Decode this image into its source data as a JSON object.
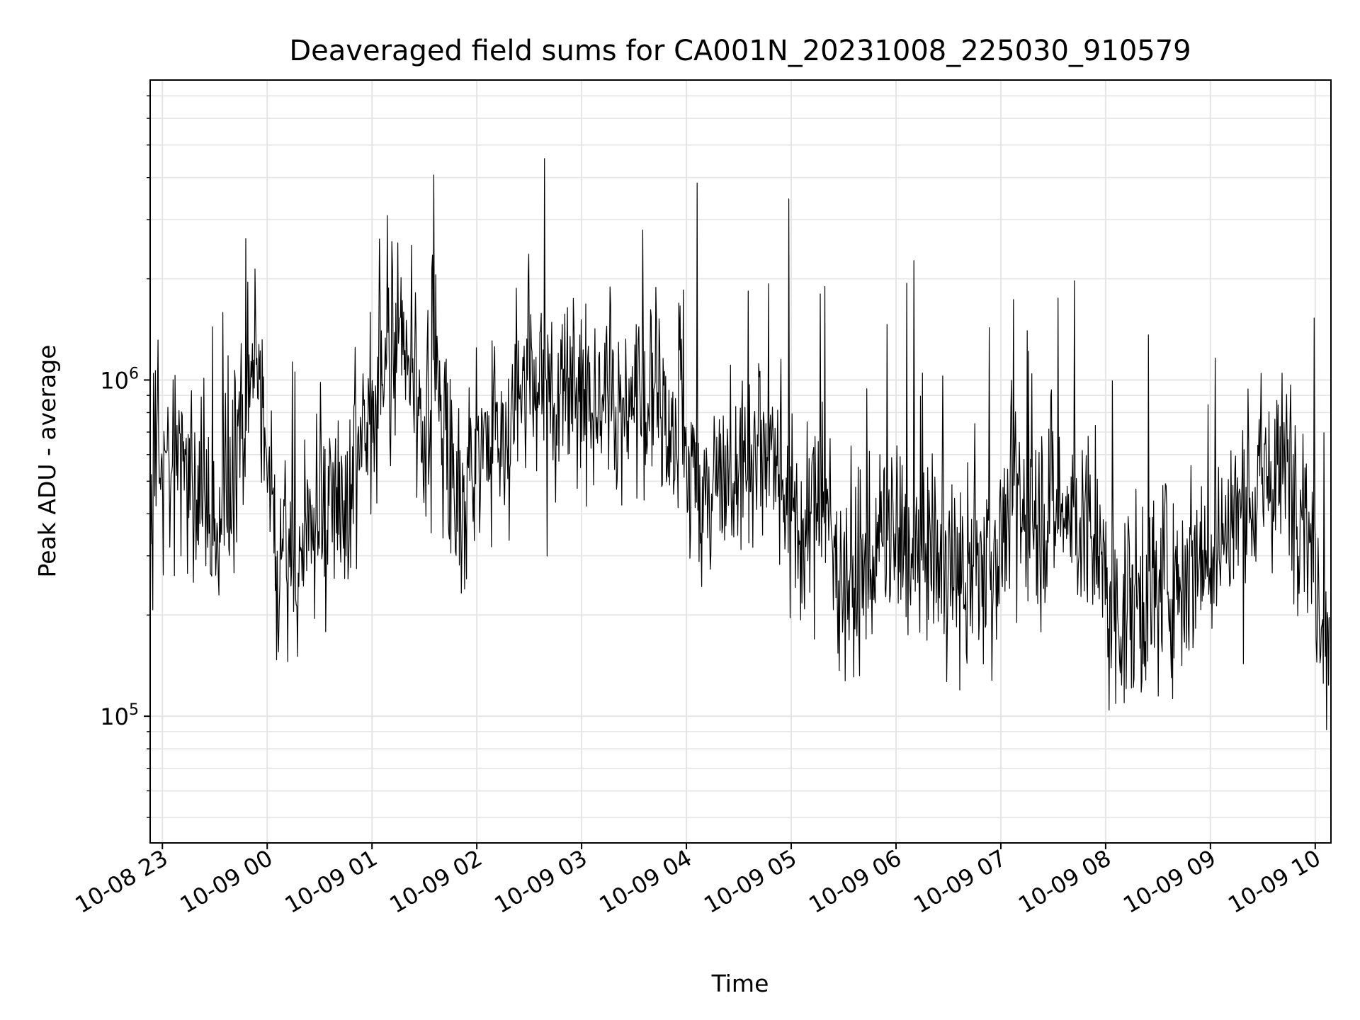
{
  "chart_data": {
    "type": "line",
    "title": "Deaveraged field sums for CA001N_20231008_225030_910579",
    "xlabel": "Time",
    "ylabel": "Peak ADU - average",
    "yscale": "log",
    "grid": true,
    "legend": "none",
    "line_color": "#000000",
    "grid_color": "#e5e5e5",
    "x_start": "2023-10-08T22:53",
    "x_end": "2023-10-09T10:09",
    "ylim": [
      42000,
      7800000
    ],
    "x_ticks": [
      {
        "value": "2023-10-08T23:00",
        "label": "10-08 23"
      },
      {
        "value": "2023-10-09T00:00",
        "label": "10-09 00"
      },
      {
        "value": "2023-10-09T01:00",
        "label": "10-09 01"
      },
      {
        "value": "2023-10-09T02:00",
        "label": "10-09 02"
      },
      {
        "value": "2023-10-09T03:00",
        "label": "10-09 03"
      },
      {
        "value": "2023-10-09T04:00",
        "label": "10-09 04"
      },
      {
        "value": "2023-10-09T05:00",
        "label": "10-09 05"
      },
      {
        "value": "2023-10-09T06:00",
        "label": "10-09 06"
      },
      {
        "value": "2023-10-09T07:00",
        "label": "10-09 07"
      },
      {
        "value": "2023-10-09T08:00",
        "label": "10-09 08"
      },
      {
        "value": "2023-10-09T09:00",
        "label": "10-09 09"
      },
      {
        "value": "2023-10-09T10:00",
        "label": "10-09 10"
      }
    ],
    "y_ticks": [
      {
        "value": 100000,
        "base": "10",
        "exp": "5"
      },
      {
        "value": 1000000,
        "base": "10",
        "exp": "6"
      }
    ],
    "series": [
      {
        "x": [
          "2023-10-08T22:53",
          "2023-10-08T23:00",
          "2023-10-08T23:08",
          "2023-10-08T23:15",
          "2023-10-08T23:23",
          "2023-10-08T23:30",
          "2023-10-08T23:38",
          "2023-10-08T23:45",
          "2023-10-08T23:53",
          "2023-10-09T00:00",
          "2023-10-09T00:08",
          "2023-10-09T00:15",
          "2023-10-09T00:23",
          "2023-10-09T00:30",
          "2023-10-09T00:38",
          "2023-10-09T00:45",
          "2023-10-09T00:53",
          "2023-10-09T01:00",
          "2023-10-09T01:08",
          "2023-10-09T01:15",
          "2023-10-09T01:23",
          "2023-10-09T01:30",
          "2023-10-09T01:38",
          "2023-10-09T01:45",
          "2023-10-09T01:53",
          "2023-10-09T02:00",
          "2023-10-09T02:08",
          "2023-10-09T02:15",
          "2023-10-09T02:23",
          "2023-10-09T02:30",
          "2023-10-09T02:38",
          "2023-10-09T02:45",
          "2023-10-09T02:53",
          "2023-10-09T03:00",
          "2023-10-09T03:08",
          "2023-10-09T03:15",
          "2023-10-09T03:23",
          "2023-10-09T03:30",
          "2023-10-09T03:38",
          "2023-10-09T03:45",
          "2023-10-09T03:53",
          "2023-10-09T04:00",
          "2023-10-09T04:08",
          "2023-10-09T04:15",
          "2023-10-09T04:23",
          "2023-10-09T04:30",
          "2023-10-09T04:38",
          "2023-10-09T04:45",
          "2023-10-09T04:53",
          "2023-10-09T05:00",
          "2023-10-09T05:08",
          "2023-10-09T05:15",
          "2023-10-09T05:23",
          "2023-10-09T05:30",
          "2023-10-09T05:38",
          "2023-10-09T05:45",
          "2023-10-09T05:53",
          "2023-10-09T06:00",
          "2023-10-09T06:08",
          "2023-10-09T06:15",
          "2023-10-09T06:23",
          "2023-10-09T06:30",
          "2023-10-09T06:38",
          "2023-10-09T06:45",
          "2023-10-09T06:53",
          "2023-10-09T07:00",
          "2023-10-09T07:08",
          "2023-10-09T07:15",
          "2023-10-09T07:23",
          "2023-10-09T07:30",
          "2023-10-09T07:38",
          "2023-10-09T07:45",
          "2023-10-09T07:53",
          "2023-10-09T08:00",
          "2023-10-09T08:08",
          "2023-10-09T08:15",
          "2023-10-09T08:23",
          "2023-10-09T08:30",
          "2023-10-09T08:38",
          "2023-10-09T08:45",
          "2023-10-09T08:53",
          "2023-10-09T09:00",
          "2023-10-09T09:08",
          "2023-10-09T09:15",
          "2023-10-09T09:23",
          "2023-10-09T09:30",
          "2023-10-09T09:38",
          "2023-10-09T09:45",
          "2023-10-09T09:53",
          "2023-10-09T10:00",
          "2023-10-09T10:08"
        ],
        "values": [
          420000,
          600000,
          650000,
          560000,
          520000,
          330000,
          480000,
          700000,
          1100000,
          520000,
          300000,
          270000,
          350000,
          430000,
          500000,
          380000,
          600000,
          850000,
          1300000,
          1250000,
          1000000,
          700000,
          1050000,
          520000,
          480000,
          600000,
          650000,
          700000,
          850000,
          950000,
          900000,
          870000,
          880000,
          950000,
          900000,
          880000,
          830000,
          900000,
          960000,
          800000,
          680000,
          550000,
          480000,
          520000,
          580000,
          560000,
          620000,
          650000,
          620000,
          400000,
          300000,
          550000,
          330000,
          270000,
          250000,
          280000,
          350000,
          330000,
          300000,
          350000,
          300000,
          260000,
          250000,
          260000,
          300000,
          330000,
          450000,
          380000,
          400000,
          430000,
          400000,
          400000,
          300000,
          230000,
          200000,
          220000,
          230000,
          250000,
          260000,
          270000,
          300000,
          320000,
          350000,
          400000,
          450000,
          480000,
          520000,
          560000,
          460000,
          280000,
          170000
        ]
      }
    ]
  }
}
